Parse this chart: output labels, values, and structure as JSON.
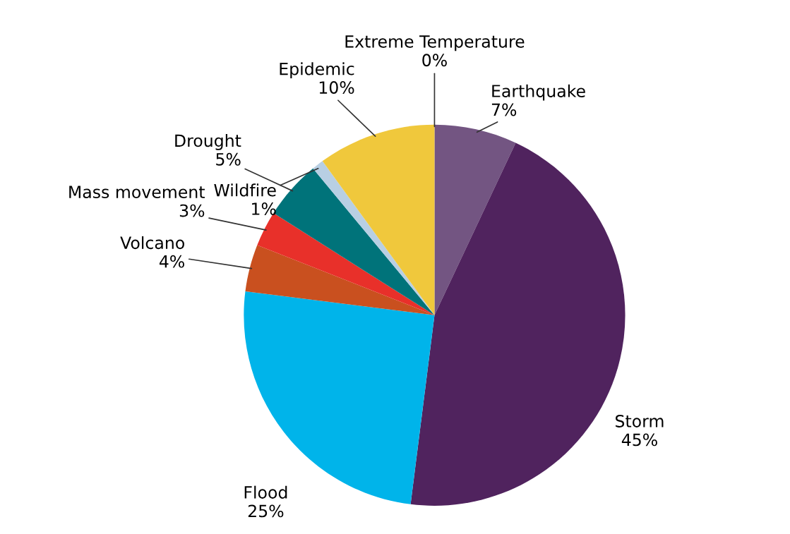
{
  "chart_data": {
    "type": "pie",
    "categories": [
      "Extreme Temperature",
      "Earthquake",
      "Storm",
      "Flood",
      "Volcano",
      "Mass movement",
      "Drought",
      "Wildfire",
      "Epidemic"
    ],
    "values": [
      0,
      7,
      45,
      25,
      4,
      3,
      5,
      1,
      10
    ],
    "value_labels": [
      "0%",
      "7%",
      "45%",
      "25%",
      "4%",
      "3%",
      "5%",
      "1%",
      "10%"
    ],
    "colors": [
      "#e8b89a",
      "#735582",
      "#50235e",
      "#00b4ea",
      "#c9501f",
      "#e8302a",
      "#00737a",
      "#b8cfe3",
      "#f0c83c"
    ],
    "legend": false
  }
}
